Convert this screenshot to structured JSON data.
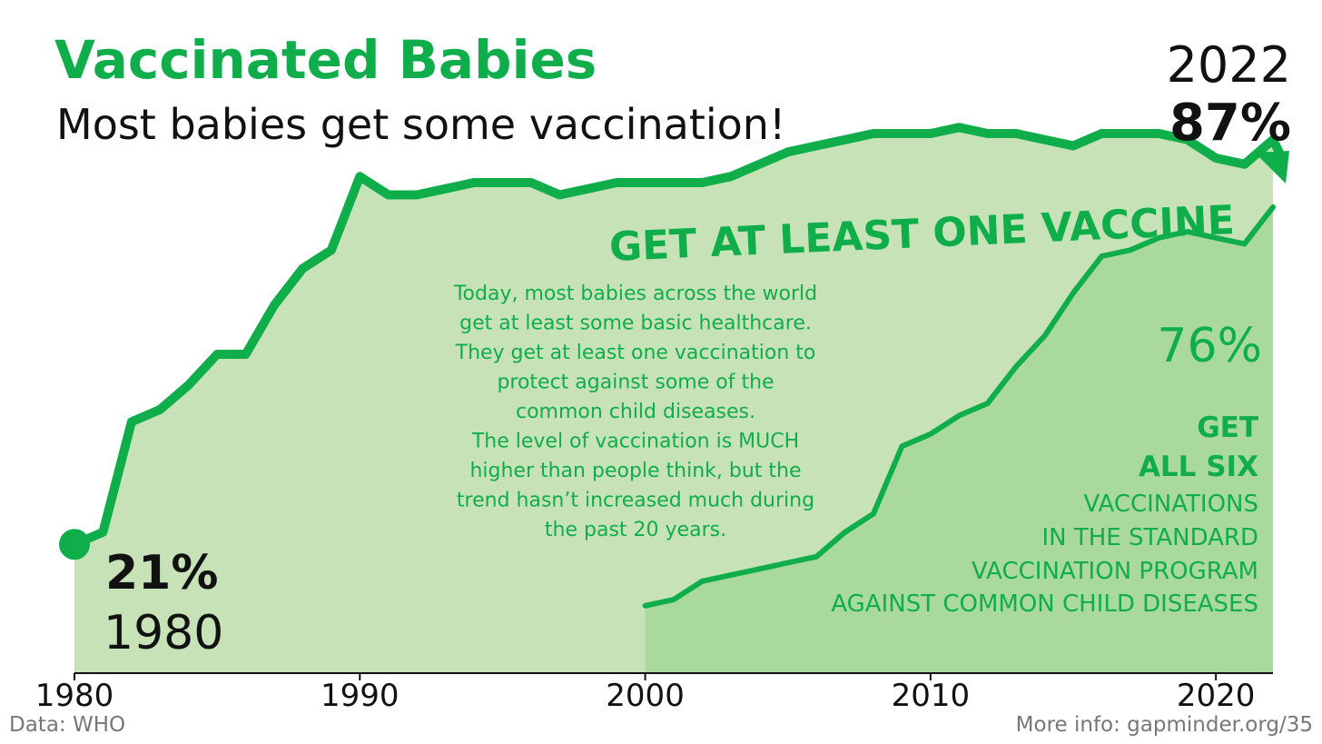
{
  "header": {
    "title": "Vaccinated Babies",
    "subtitle": "Most babies get some vaccination!"
  },
  "callouts": {
    "start_value": "21%",
    "start_year": "1980",
    "end_year": "2022",
    "end_value": "87%",
    "all_six_value": "76%",
    "at_least_one_label": "GET AT LEAST ONE VACCINE",
    "all_six_lines": [
      "GET",
      "ALL SIX",
      "VACCINATIONS",
      "IN THE STANDARD",
      "VACCINATION PROGRAM",
      "AGAINST COMMON CHILD DISEASES"
    ],
    "description_lines": [
      "Today, most babies across the world",
      "get at least some basic healthcare.",
      "They get at least one vaccination to",
      "protect against some of the",
      "common child diseases.",
      "The level of vaccination is MUCH",
      "higher than people think, but the",
      "trend hasn’t increased much during",
      "the past 20 years."
    ]
  },
  "footer": {
    "source": "Data: WHO",
    "more_info": "More info: gapminder.org/35"
  },
  "colors": {
    "brand_green": "#0fae4b",
    "area_light": "#c6e2b6",
    "area_dark": "#a9d99c",
    "text_dark": "#111111",
    "footer_gray": "#777777"
  },
  "chart_data": {
    "type": "area",
    "xlim": [
      1980,
      2022
    ],
    "ylim": [
      0,
      100
    ],
    "x_ticks": [
      1980,
      1990,
      2000,
      2010,
      2020
    ],
    "series": [
      {
        "x": [
          1980,
          1981,
          1982,
          1983,
          1984,
          1985,
          1986,
          1987,
          1988,
          1989,
          1990,
          1991,
          1992,
          1993,
          1994,
          1995,
          1996,
          1997,
          1998,
          1999,
          2000,
          2001,
          2002,
          2003,
          2004,
          2005,
          2006,
          2007,
          2008,
          2009,
          2010,
          2011,
          2012,
          2013,
          2014,
          2015,
          2016,
          2017,
          2018,
          2019,
          2020,
          2021,
          2022
        ],
        "values": [
          21,
          23,
          41,
          43,
          47,
          52,
          52,
          60,
          66,
          69,
          81,
          78,
          78,
          79,
          80,
          80,
          80,
          78,
          79,
          80,
          80,
          80,
          80,
          81,
          83,
          85,
          86,
          87,
          88,
          88,
          88,
          89,
          88,
          88,
          87,
          86,
          88,
          88,
          88,
          87,
          84,
          83,
          87
        ]
      },
      {
        "x": [
          2000,
          2001,
          2002,
          2003,
          2004,
          2005,
          2006,
          2007,
          2008,
          2009,
          2010,
          2011,
          2012,
          2013,
          2014,
          2015,
          2016,
          2017,
          2018,
          2019,
          2020,
          2021,
          2022
        ],
        "values": [
          11,
          12,
          15,
          16,
          17,
          18,
          19,
          23,
          26,
          37,
          39,
          42,
          44,
          50,
          55,
          62,
          68,
          69,
          71,
          72,
          71,
          70,
          76
        ]
      }
    ]
  }
}
